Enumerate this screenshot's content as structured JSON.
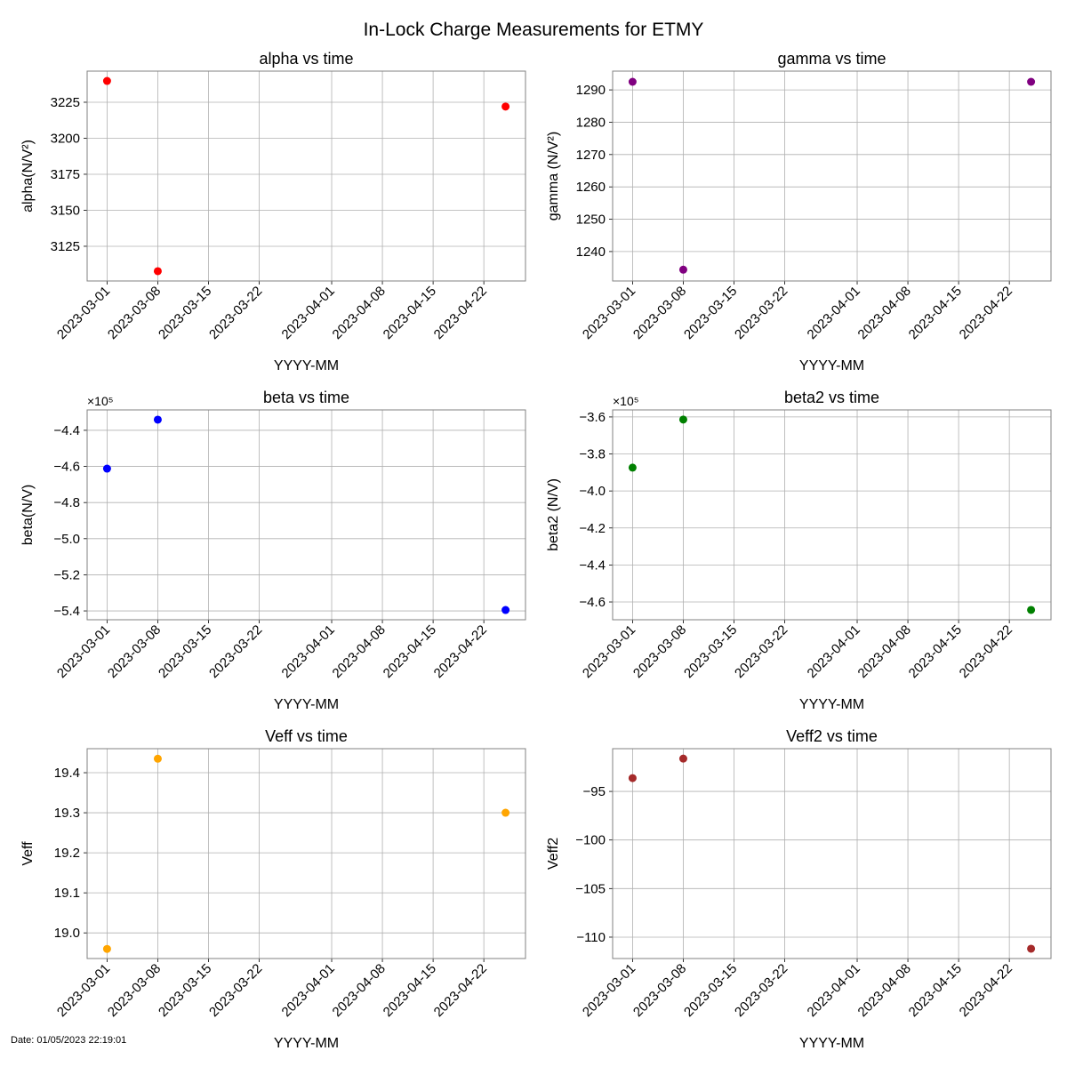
{
  "suptitle": "In-Lock Charge Measurements for ETMY",
  "footer_date": "Date: 01/05/2023 22:19:01",
  "chart_data": [
    {
      "type": "scatter",
      "title": "alpha vs time",
      "xlabel": "YYYY-MM",
      "ylabel": "alpha(N/V²)",
      "color": "#ff0000",
      "x": [
        "2023-03-01",
        "2023-03-08",
        "2023-04-25"
      ],
      "y": [
        3239.8,
        3107.7,
        3222.0
      ],
      "xlim": [
        "2023-02-26T06:00",
        "2023-04-27T18:00"
      ],
      "ylim": [
        3100.9,
        3246.6
      ],
      "yticks": [
        3125,
        3150,
        3175,
        3200,
        3225
      ],
      "ytick_labels": [
        "3125",
        "3150",
        "3175",
        "3200",
        "3225"
      ],
      "offset_text": "",
      "grid": true
    },
    {
      "type": "scatter",
      "title": "gamma vs time",
      "xlabel": "YYYY-MM",
      "ylabel": "gamma (N/V²)",
      "color": "#800080",
      "x": [
        "2023-03-01",
        "2023-03-08",
        "2023-04-25"
      ],
      "y": [
        1292.5,
        1234.4,
        1292.5
      ],
      "xlim": [
        "2023-02-26T06:00",
        "2023-04-27T18:00"
      ],
      "ylim": [
        1230.9,
        1295.8
      ],
      "yticks": [
        1240,
        1250,
        1260,
        1270,
        1280,
        1290
      ],
      "ytick_labels": [
        "1240",
        "1250",
        "1260",
        "1270",
        "1280",
        "1290"
      ],
      "offset_text": "",
      "grid": true
    },
    {
      "type": "scatter",
      "title": "beta vs time",
      "xlabel": "YYYY-MM",
      "ylabel": "beta(N/V)",
      "color": "#0000ff",
      "x": [
        "2023-03-01",
        "2023-03-08",
        "2023-04-25"
      ],
      "y": [
        -461200,
        -434100,
        -539500
      ],
      "xlim": [
        "2023-02-26T06:00",
        "2023-04-27T18:00"
      ],
      "ylim": [
        -544900,
        -428700
      ],
      "yticks": [
        -540000,
        -520000,
        -500000,
        -480000,
        -460000,
        -440000
      ],
      "ytick_labels": [
        "−5.4",
        "−5.2",
        "−5.0",
        "−4.8",
        "−4.6",
        "−4.4"
      ],
      "offset_text": "×10⁵",
      "grid": true
    },
    {
      "type": "scatter",
      "title": "beta2 vs time",
      "xlabel": "YYYY-MM",
      "ylabel": "beta2 (N/V)",
      "color": "#008000",
      "x": [
        "2023-03-01",
        "2023-03-08",
        "2023-04-25"
      ],
      "y": [
        -387400,
        -361400,
        -464300
      ],
      "xlim": [
        "2023-02-26T06:00",
        "2023-04-27T18:00"
      ],
      "ylim": [
        -469600,
        -356200
      ],
      "yticks": [
        -460000,
        -440000,
        -420000,
        -400000,
        -380000,
        -360000
      ],
      "ytick_labels": [
        "−4.6",
        "−4.4",
        "−4.2",
        "−4.0",
        "−3.8",
        "−3.6"
      ],
      "offset_text": "×10⁵",
      "grid": true
    },
    {
      "type": "scatter",
      "title": "Veff vs time",
      "xlabel": "YYYY-MM",
      "ylabel": "Veff",
      "color": "#ffa500",
      "x": [
        "2023-03-01",
        "2023-03-08",
        "2023-04-25"
      ],
      "y": [
        18.96,
        19.435,
        19.3
      ],
      "xlim": [
        "2023-02-26T06:00",
        "2023-04-27T18:00"
      ],
      "ylim": [
        18.936,
        19.46
      ],
      "yticks": [
        19.0,
        19.1,
        19.2,
        19.3,
        19.4
      ],
      "ytick_labels": [
        "19.0",
        "19.1",
        "19.2",
        "19.3",
        "19.4"
      ],
      "offset_text": "",
      "grid": true
    },
    {
      "type": "scatter",
      "title": "Veff2 vs time",
      "xlabel": "YYYY-MM",
      "ylabel": "Veff2",
      "color": "#a52a2a",
      "x": [
        "2023-03-01",
        "2023-03-08",
        "2023-04-25"
      ],
      "y": [
        -93.63,
        -91.62,
        -111.19
      ],
      "xlim": [
        "2023-02-26T06:00",
        "2023-04-27T18:00"
      ],
      "ylim": [
        -112.2,
        -90.6
      ],
      "yticks": [
        -110,
        -105,
        -100,
        -95
      ],
      "ytick_labels": [
        "−110",
        "−105",
        "−100",
        "−95"
      ],
      "offset_text": "",
      "grid": true
    }
  ],
  "xticks": [
    "2023-03-01",
    "2023-03-08",
    "2023-03-15",
    "2023-03-22",
    "2023-04-01",
    "2023-04-08",
    "2023-04-15",
    "2023-04-22"
  ]
}
